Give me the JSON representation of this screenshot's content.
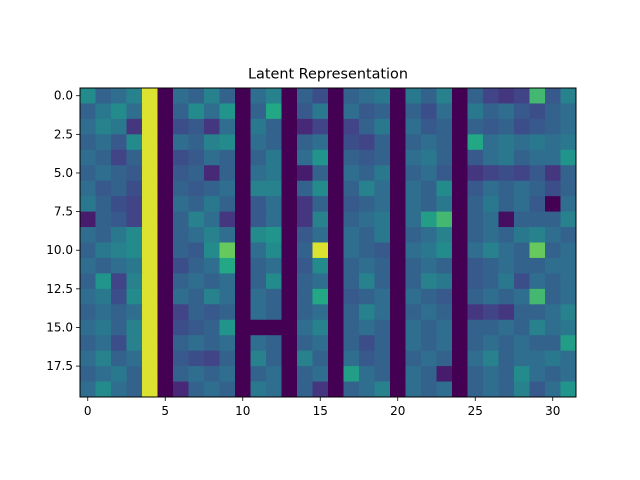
{
  "chart_data": {
    "type": "heatmap",
    "title": "Latent Representation",
    "xlabel": "",
    "ylabel": "",
    "colormap": "viridis",
    "grid": false,
    "xlim": [
      -0.5,
      31.5
    ],
    "ylim": [
      19.5,
      -0.5
    ],
    "vmin": 0,
    "vmax": 1,
    "x_ticks": [
      0,
      5,
      10,
      15,
      20,
      25,
      30
    ],
    "x_tick_labels": [
      "0",
      "5",
      "10",
      "15",
      "20",
      "25",
      "30"
    ],
    "y_ticks": [
      0.0,
      2.5,
      5.0,
      7.5,
      10.0,
      12.5,
      15.0,
      17.5
    ],
    "y_tick_labels": [
      "0.0",
      "2.5",
      "5.0",
      "7.5",
      "10.0",
      "12.5",
      "15.0",
      "17.5"
    ],
    "n_rows": 20,
    "n_cols": 32,
    "values": [
      [
        0.6,
        0.4,
        0.45,
        0.55,
        0.97,
        0.0,
        0.45,
        0.4,
        0.55,
        0.4,
        0.0,
        0.45,
        0.55,
        0.0,
        0.4,
        0.3,
        0.0,
        0.4,
        0.45,
        0.5,
        0.0,
        0.5,
        0.4,
        0.55,
        0.0,
        0.4,
        0.25,
        0.2,
        0.25,
        0.8,
        0.35,
        0.55
      ],
      [
        0.4,
        0.5,
        0.6,
        0.45,
        0.97,
        0.0,
        0.4,
        0.6,
        0.45,
        0.65,
        0.0,
        0.4,
        0.75,
        0.0,
        0.35,
        0.5,
        0.0,
        0.45,
        0.35,
        0.4,
        0.0,
        0.4,
        0.3,
        0.45,
        0.0,
        0.5,
        0.4,
        0.45,
        0.35,
        0.3,
        0.4,
        0.45
      ],
      [
        0.45,
        0.55,
        0.5,
        0.2,
        0.97,
        0.0,
        0.3,
        0.35,
        0.2,
        0.45,
        0.0,
        0.5,
        0.4,
        0.0,
        0.15,
        0.25,
        0.0,
        0.25,
        0.4,
        0.5,
        0.0,
        0.45,
        0.35,
        0.4,
        0.0,
        0.4,
        0.35,
        0.4,
        0.3,
        0.35,
        0.4,
        0.45
      ],
      [
        0.4,
        0.45,
        0.35,
        0.6,
        0.97,
        0.0,
        0.45,
        0.4,
        0.55,
        0.6,
        0.0,
        0.45,
        0.4,
        0.0,
        0.4,
        0.45,
        0.0,
        0.3,
        0.25,
        0.4,
        0.0,
        0.4,
        0.45,
        0.4,
        0.0,
        0.75,
        0.45,
        0.5,
        0.45,
        0.5,
        0.45,
        0.5
      ],
      [
        0.45,
        0.4,
        0.25,
        0.4,
        0.97,
        0.0,
        0.3,
        0.35,
        0.45,
        0.4,
        0.0,
        0.4,
        0.5,
        0.0,
        0.45,
        0.65,
        0.0,
        0.4,
        0.35,
        0.4,
        0.0,
        0.45,
        0.5,
        0.4,
        0.0,
        0.35,
        0.45,
        0.5,
        0.4,
        0.45,
        0.45,
        0.65
      ],
      [
        0.4,
        0.45,
        0.4,
        0.35,
        0.97,
        0.0,
        0.35,
        0.4,
        0.15,
        0.4,
        0.0,
        0.45,
        0.5,
        0.0,
        0.1,
        0.4,
        0.0,
        0.45,
        0.4,
        0.5,
        0.0,
        0.4,
        0.45,
        0.35,
        0.0,
        0.2,
        0.25,
        0.3,
        0.25,
        0.35,
        0.2,
        0.4
      ],
      [
        0.45,
        0.35,
        0.4,
        0.3,
        0.97,
        0.0,
        0.4,
        0.35,
        0.4,
        0.45,
        0.0,
        0.55,
        0.55,
        0.0,
        0.4,
        0.6,
        0.0,
        0.4,
        0.55,
        0.45,
        0.0,
        0.45,
        0.4,
        0.6,
        0.0,
        0.35,
        0.45,
        0.4,
        0.45,
        0.4,
        0.3,
        0.4
      ],
      [
        0.5,
        0.4,
        0.3,
        0.25,
        0.97,
        0.0,
        0.45,
        0.4,
        0.5,
        0.4,
        0.0,
        0.35,
        0.45,
        0.0,
        0.2,
        0.4,
        0.0,
        0.35,
        0.4,
        0.45,
        0.0,
        0.45,
        0.4,
        0.5,
        0.0,
        0.4,
        0.5,
        0.4,
        0.45,
        0.35,
        0.0,
        0.45
      ],
      [
        0.1,
        0.4,
        0.35,
        0.25,
        0.97,
        0.0,
        0.4,
        0.55,
        0.45,
        0.2,
        0.0,
        0.35,
        0.45,
        0.0,
        0.2,
        0.55,
        0.0,
        0.4,
        0.45,
        0.5,
        0.0,
        0.45,
        0.7,
        0.8,
        0.0,
        0.4,
        0.45,
        0.05,
        0.4,
        0.4,
        0.4,
        0.55
      ],
      [
        0.45,
        0.4,
        0.5,
        0.6,
        0.97,
        0.0,
        0.4,
        0.45,
        0.55,
        0.45,
        0.0,
        0.6,
        0.65,
        0.0,
        0.35,
        0.45,
        0.0,
        0.45,
        0.4,
        0.5,
        0.0,
        0.4,
        0.45,
        0.55,
        0.0,
        0.4,
        0.45,
        0.4,
        0.5,
        0.55,
        0.45,
        0.4
      ],
      [
        0.4,
        0.5,
        0.55,
        0.6,
        0.97,
        0.0,
        0.4,
        0.35,
        0.6,
        0.85,
        0.0,
        0.45,
        0.6,
        0.0,
        0.4,
        0.97,
        0.0,
        0.45,
        0.4,
        0.35,
        0.0,
        0.45,
        0.5,
        0.6,
        0.0,
        0.45,
        0.55,
        0.45,
        0.4,
        0.85,
        0.4,
        0.45
      ],
      [
        0.45,
        0.4,
        0.45,
        0.5,
        0.97,
        0.0,
        0.3,
        0.4,
        0.45,
        0.75,
        0.0,
        0.4,
        0.45,
        0.0,
        0.35,
        0.6,
        0.0,
        0.4,
        0.45,
        0.4,
        0.0,
        0.4,
        0.45,
        0.4,
        0.0,
        0.35,
        0.4,
        0.45,
        0.4,
        0.4,
        0.45,
        0.45
      ],
      [
        0.4,
        0.65,
        0.25,
        0.55,
        0.97,
        0.0,
        0.4,
        0.45,
        0.4,
        0.45,
        0.0,
        0.4,
        0.6,
        0.0,
        0.4,
        0.45,
        0.0,
        0.4,
        0.55,
        0.4,
        0.0,
        0.4,
        0.55,
        0.5,
        0.0,
        0.35,
        0.4,
        0.5,
        0.3,
        0.45,
        0.4,
        0.45
      ],
      [
        0.45,
        0.5,
        0.3,
        0.6,
        0.97,
        0.0,
        0.45,
        0.4,
        0.55,
        0.45,
        0.0,
        0.45,
        0.4,
        0.0,
        0.4,
        0.75,
        0.0,
        0.35,
        0.4,
        0.45,
        0.0,
        0.45,
        0.4,
        0.35,
        0.0,
        0.4,
        0.45,
        0.4,
        0.45,
        0.8,
        0.4,
        0.45
      ],
      [
        0.4,
        0.45,
        0.4,
        0.45,
        0.97,
        0.0,
        0.25,
        0.4,
        0.35,
        0.4,
        0.0,
        0.45,
        0.4,
        0.0,
        0.4,
        0.45,
        0.0,
        0.4,
        0.55,
        0.45,
        0.0,
        0.4,
        0.45,
        0.4,
        0.0,
        0.2,
        0.25,
        0.2,
        0.4,
        0.4,
        0.45,
        0.55
      ],
      [
        0.45,
        0.5,
        0.4,
        0.55,
        0.97,
        0.0,
        0.3,
        0.35,
        0.4,
        0.65,
        0.0,
        0.0,
        0.0,
        0.0,
        0.45,
        0.55,
        0.0,
        0.4,
        0.45,
        0.4,
        0.0,
        0.45,
        0.4,
        0.45,
        0.0,
        0.4,
        0.4,
        0.45,
        0.4,
        0.55,
        0.45,
        0.5
      ],
      [
        0.4,
        0.45,
        0.3,
        0.55,
        0.97,
        0.0,
        0.4,
        0.45,
        0.4,
        0.45,
        0.0,
        0.45,
        0.4,
        0.0,
        0.4,
        0.45,
        0.0,
        0.4,
        0.3,
        0.4,
        0.0,
        0.45,
        0.4,
        0.45,
        0.0,
        0.4,
        0.45,
        0.4,
        0.45,
        0.4,
        0.4,
        0.7
      ],
      [
        0.45,
        0.55,
        0.4,
        0.45,
        0.97,
        0.0,
        0.35,
        0.3,
        0.25,
        0.4,
        0.0,
        0.55,
        0.4,
        0.0,
        0.55,
        0.4,
        0.0,
        0.45,
        0.35,
        0.4,
        0.0,
        0.4,
        0.45,
        0.4,
        0.0,
        0.45,
        0.55,
        0.4,
        0.45,
        0.45,
        0.5,
        0.45
      ],
      [
        0.4,
        0.45,
        0.5,
        0.4,
        0.97,
        0.0,
        0.4,
        0.45,
        0.4,
        0.45,
        0.0,
        0.4,
        0.45,
        0.0,
        0.4,
        0.45,
        0.0,
        0.7,
        0.45,
        0.4,
        0.0,
        0.45,
        0.4,
        0.1,
        0.0,
        0.4,
        0.45,
        0.4,
        0.6,
        0.45,
        0.4,
        0.45
      ],
      [
        0.45,
        0.6,
        0.45,
        0.4,
        0.97,
        0.0,
        0.15,
        0.4,
        0.45,
        0.4,
        0.0,
        0.5,
        0.45,
        0.0,
        0.4,
        0.2,
        0.0,
        0.4,
        0.45,
        0.55,
        0.0,
        0.45,
        0.4,
        0.45,
        0.0,
        0.4,
        0.45,
        0.4,
        0.55,
        0.35,
        0.45,
        0.65
      ]
    ]
  }
}
